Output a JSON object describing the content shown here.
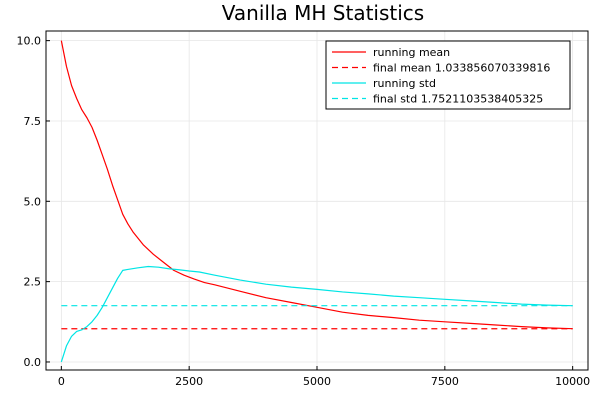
{
  "chart_data": {
    "type": "line",
    "title": "Vanilla MH Statistics",
    "xlabel": "",
    "ylabel": "",
    "xlim": [
      -300,
      10300
    ],
    "ylim": [
      -0.25,
      10.3
    ],
    "xticks": [
      0,
      2500,
      5000,
      7500,
      10000
    ],
    "xtick_labels": [
      "0",
      "2500",
      "5000",
      "7500",
      "10000"
    ],
    "yticks": [
      0.0,
      2.5,
      5.0,
      7.5,
      10.0
    ],
    "ytick_labels": [
      "0.0",
      "2.5",
      "5.0",
      "7.5",
      "10.0"
    ],
    "grid": true,
    "legend_position": "top-right",
    "series": [
      {
        "name": "running mean",
        "color": "#ff0000",
        "style": "solid",
        "x": [
          0,
          100,
          200,
          300,
          400,
          500,
          600,
          700,
          800,
          900,
          1000,
          1100,
          1200,
          1300,
          1400,
          1600,
          1800,
          2000,
          2200,
          2400,
          2600,
          2800,
          3000,
          3500,
          4000,
          4500,
          5000,
          5500,
          6000,
          6500,
          7000,
          7500,
          8000,
          8500,
          9000,
          9500,
          10000
        ],
        "y": [
          10.0,
          9.2,
          8.6,
          8.2,
          7.85,
          7.6,
          7.3,
          6.9,
          6.45,
          6.0,
          5.5,
          5.05,
          4.6,
          4.3,
          4.05,
          3.65,
          3.35,
          3.1,
          2.85,
          2.7,
          2.58,
          2.47,
          2.4,
          2.2,
          2.0,
          1.85,
          1.7,
          1.55,
          1.45,
          1.38,
          1.3,
          1.25,
          1.2,
          1.15,
          1.1,
          1.06,
          1.035
        ]
      },
      {
        "name": "final mean 1.033856070339816",
        "color": "#ff0000",
        "style": "dashed",
        "x": [
          0,
          10000
        ],
        "y": [
          1.033856070339816,
          1.033856070339816
        ]
      },
      {
        "name": "running std",
        "color": "#00e5e5",
        "style": "solid",
        "x": [
          0,
          100,
          200,
          300,
          400,
          500,
          600,
          700,
          800,
          900,
          1000,
          1100,
          1200,
          1300,
          1500,
          1700,
          1900,
          2100,
          2300,
          2500,
          2700,
          3000,
          3500,
          4000,
          4500,
          5000,
          5500,
          6000,
          6500,
          7000,
          7500,
          8000,
          8500,
          9000,
          9500,
          10000
        ],
        "y": [
          0.0,
          0.5,
          0.8,
          0.95,
          1.0,
          1.1,
          1.25,
          1.45,
          1.7,
          2.0,
          2.3,
          2.6,
          2.85,
          2.88,
          2.93,
          2.97,
          2.95,
          2.9,
          2.87,
          2.83,
          2.8,
          2.7,
          2.55,
          2.42,
          2.33,
          2.26,
          2.18,
          2.12,
          2.05,
          2.0,
          1.95,
          1.9,
          1.85,
          1.8,
          1.77,
          1.752
        ]
      },
      {
        "name": "final std 1.7521103538405325",
        "color": "#00e5e5",
        "style": "dashed",
        "x": [
          0,
          10000
        ],
        "y": [
          1.7521103538405325,
          1.7521103538405325
        ]
      }
    ]
  }
}
